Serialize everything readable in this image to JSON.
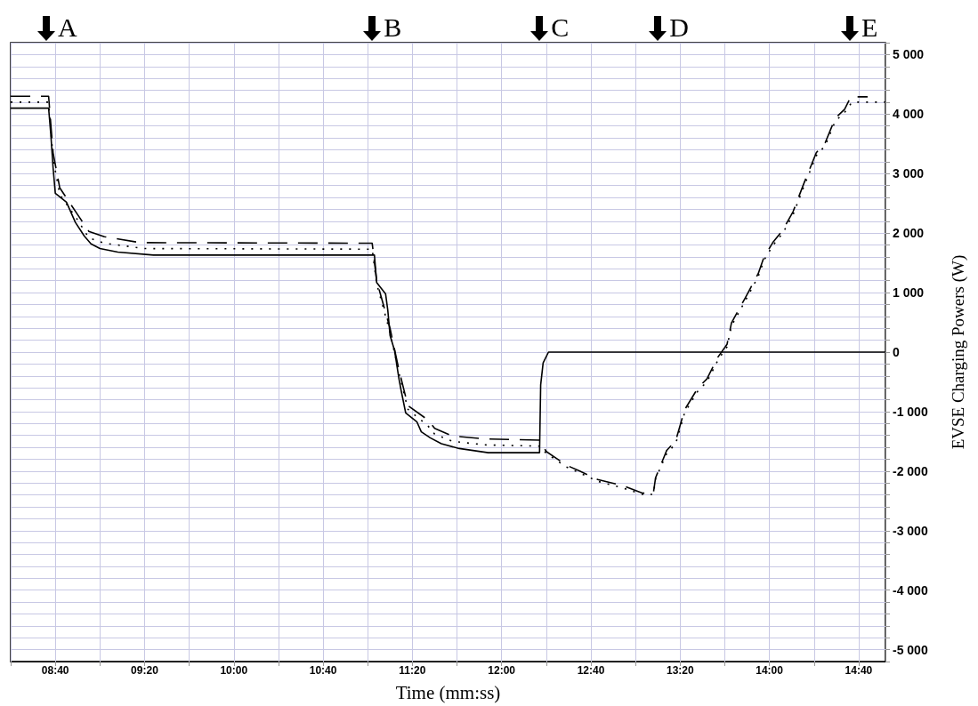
{
  "chart_data": {
    "type": "line",
    "xlabel": "Time (mm:ss)",
    "ylabel": "EVSE Charging Powers (W)",
    "xlim": [
      500,
      892
    ],
    "ylim": [
      -5200,
      5200
    ],
    "xticks": [
      {
        "value": 500,
        "label": null
      },
      {
        "value": 520,
        "label": "08:40"
      },
      {
        "value": 540,
        "label": null
      },
      {
        "value": 560,
        "label": "09:20"
      },
      {
        "value": 580,
        "label": null
      },
      {
        "value": 600,
        "label": "10:00"
      },
      {
        "value": 620,
        "label": null
      },
      {
        "value": 640,
        "label": "10:40"
      },
      {
        "value": 660,
        "label": null
      },
      {
        "value": 680,
        "label": "11:20"
      },
      {
        "value": 700,
        "label": null
      },
      {
        "value": 720,
        "label": "12:00"
      },
      {
        "value": 740,
        "label": null
      },
      {
        "value": 760,
        "label": "12:40"
      },
      {
        "value": 780,
        "label": null
      },
      {
        "value": 800,
        "label": "13:20"
      },
      {
        "value": 820,
        "label": null
      },
      {
        "value": 840,
        "label": "14:00"
      },
      {
        "value": 860,
        "label": null
      },
      {
        "value": 880,
        "label": "14:40"
      }
    ],
    "yticks": [
      {
        "value": -5200,
        "label": null
      },
      {
        "value": -5000,
        "label": "-5 000"
      },
      {
        "value": -4800,
        "label": null
      },
      {
        "value": -4600,
        "label": null
      },
      {
        "value": -4400,
        "label": null
      },
      {
        "value": -4200,
        "label": null
      },
      {
        "value": -4000,
        "label": "-4 000"
      },
      {
        "value": -3800,
        "label": null
      },
      {
        "value": -3600,
        "label": null
      },
      {
        "value": -3400,
        "label": null
      },
      {
        "value": -3200,
        "label": null
      },
      {
        "value": -3000,
        "label": "-3 000"
      },
      {
        "value": -2800,
        "label": null
      },
      {
        "value": -2600,
        "label": null
      },
      {
        "value": -2400,
        "label": null
      },
      {
        "value": -2200,
        "label": null
      },
      {
        "value": -2000,
        "label": "-2 000"
      },
      {
        "value": -1800,
        "label": null
      },
      {
        "value": -1600,
        "label": null
      },
      {
        "value": -1400,
        "label": null
      },
      {
        "value": -1200,
        "label": null
      },
      {
        "value": -1000,
        "label": "-1 000"
      },
      {
        "value": -800,
        "label": null
      },
      {
        "value": -600,
        "label": null
      },
      {
        "value": -400,
        "label": null
      },
      {
        "value": -200,
        "label": null
      },
      {
        "value": 0,
        "label": "0"
      },
      {
        "value": 200,
        "label": null
      },
      {
        "value": 400,
        "label": null
      },
      {
        "value": 600,
        "label": null
      },
      {
        "value": 800,
        "label": null
      },
      {
        "value": 1000,
        "label": "1 000"
      },
      {
        "value": 1200,
        "label": null
      },
      {
        "value": 1400,
        "label": null
      },
      {
        "value": 1600,
        "label": null
      },
      {
        "value": 1800,
        "label": null
      },
      {
        "value": 2000,
        "label": "2 000"
      },
      {
        "value": 2200,
        "label": null
      },
      {
        "value": 2400,
        "label": null
      },
      {
        "value": 2600,
        "label": null
      },
      {
        "value": 2800,
        "label": null
      },
      {
        "value": 3000,
        "label": "3 000"
      },
      {
        "value": 3200,
        "label": null
      },
      {
        "value": 3400,
        "label": null
      },
      {
        "value": 3600,
        "label": null
      },
      {
        "value": 3800,
        "label": null
      },
      {
        "value": 4000,
        "label": "4 000"
      },
      {
        "value": 4200,
        "label": null
      },
      {
        "value": 4400,
        "label": null
      },
      {
        "value": 4600,
        "label": null
      },
      {
        "value": 4800,
        "label": null
      },
      {
        "value": 5000,
        "label": "5 000"
      },
      {
        "value": 5200,
        "label": null
      }
    ],
    "grid": true,
    "marker": "none",
    "annotations": [
      {
        "text": "A",
        "x": 516
      },
      {
        "text": "B",
        "x": 662
      },
      {
        "text": "C",
        "x": 737
      },
      {
        "text": "D",
        "x": 790
      },
      {
        "text": "E",
        "x": 876
      }
    ],
    "series": [
      {
        "color": "#000000",
        "line_style": "solid",
        "x": [
          500,
          517,
          518,
          519,
          520,
          525,
          529,
          533,
          536,
          540,
          548,
          564,
          663,
          664,
          668,
          669,
          670,
          672,
          674,
          675,
          677,
          682,
          684,
          688,
          693,
          701,
          714,
          737,
          737.5,
          738.6,
          741,
          892
        ],
        "values": [
          4100,
          4100,
          3650,
          3100,
          2670,
          2520,
          2180,
          1950,
          1820,
          1740,
          1680,
          1630,
          1630,
          1170,
          980,
          700,
          280,
          30,
          -450,
          -650,
          -1020,
          -1170,
          -1340,
          -1440,
          -1540,
          -1620,
          -1690,
          -1690,
          -550,
          -180,
          0,
          0
        ]
      },
      {
        "color": "#000000",
        "line_style": "dashed",
        "x": [
          500,
          517,
          519,
          522,
          530,
          535,
          542,
          558,
          662,
          664,
          670,
          674,
          678,
          687,
          690,
          698,
          713,
          737,
          740,
          749,
          755,
          763,
          774,
          783,
          788,
          789,
          794,
          798,
          802,
          808,
          812,
          817,
          821,
          823,
          829,
          835,
          837.5,
          841.5,
          846,
          850.6,
          855.4,
          861,
          865,
          869.5,
          873.7,
          876.5,
          884
        ],
        "values": [
          4300,
          4300,
          3350,
          2760,
          2310,
          2030,
          1940,
          1840,
          1830,
          1200,
          400,
          -300,
          -900,
          -1140,
          -1280,
          -1410,
          -1460,
          -1480,
          -1670,
          -1900,
          -2000,
          -2140,
          -2240,
          -2370,
          -2370,
          -2110,
          -1650,
          -1490,
          -970,
          -600,
          -450,
          -80,
          130,
          490,
          900,
          1320,
          1590,
          1840,
          2050,
          2360,
          2830,
          3350,
          3520,
          3930,
          4080,
          4290,
          4290
        ]
      },
      {
        "color": "#000000",
        "line_style": "dotted",
        "x": [
          500,
          517,
          519,
          522,
          530,
          535,
          542,
          560,
          662,
          664,
          670,
          674,
          678,
          687,
          690,
          698,
          713,
          737,
          740,
          749,
          755,
          763,
          774,
          783,
          788,
          789,
          794,
          798,
          802,
          808,
          812,
          817,
          821,
          823,
          829,
          835,
          837.5,
          841.5,
          846,
          850.6,
          855.4,
          861,
          865,
          869.5,
          873.7,
          877,
          892
        ],
        "values": [
          4200,
          4200,
          3250,
          2650,
          2220,
          1920,
          1830,
          1740,
          1730,
          1150,
          330,
          -350,
          -960,
          -1240,
          -1380,
          -1500,
          -1560,
          -1580,
          -1700,
          -1930,
          -2030,
          -2170,
          -2280,
          -2390,
          -2390,
          -2130,
          -1700,
          -1540,
          -1020,
          -650,
          -500,
          -130,
          90,
          440,
          850,
          1270,
          1540,
          1790,
          2000,
          2310,
          2780,
          3300,
          3470,
          3880,
          4030,
          4200,
          4200
        ]
      }
    ]
  }
}
